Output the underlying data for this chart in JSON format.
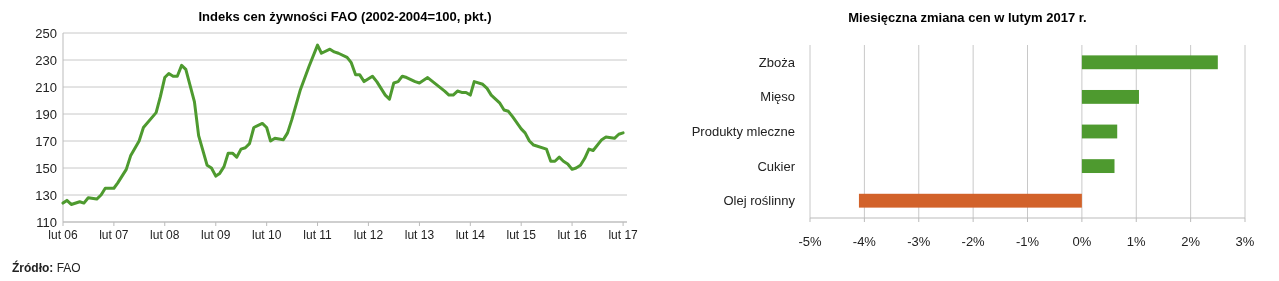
{
  "chart_data": [
    {
      "type": "line",
      "title": "Indeks cen żywności FAO (2002-2004=100, pkt.)",
      "x": [
        "2006-02",
        "2006-03",
        "2006-04",
        "2006-06",
        "2006-07",
        "2006-08",
        "2006-10",
        "2006-11",
        "2006-12",
        "2007-02",
        "2007-03",
        "2007-05",
        "2007-06",
        "2007-08",
        "2007-09",
        "2007-12",
        "2008-01",
        "2008-02",
        "2008-03",
        "2008-04",
        "2008-05",
        "2008-06",
        "2008-07",
        "2008-09",
        "2008-10",
        "2008-12",
        "2009-01",
        "2009-02",
        "2009-03",
        "2009-04",
        "2009-05",
        "2009-06",
        "2009-07",
        "2009-08",
        "2009-09",
        "2009-10",
        "2009-11",
        "2010-01",
        "2010-02",
        "2010-03",
        "2010-04",
        "2010-06",
        "2010-07",
        "2010-08",
        "2010-10",
        "2010-12",
        "2011-02",
        "2011-03",
        "2011-05",
        "2011-06",
        "2011-07",
        "2011-09",
        "2011-10",
        "2011-11",
        "2011-12",
        "2012-01",
        "2012-03",
        "2012-04",
        "2012-06",
        "2012-07",
        "2012-08",
        "2012-09",
        "2012-10",
        "2012-11",
        "2013-01",
        "2013-02",
        "2013-04",
        "2013-06",
        "2013-08",
        "2013-09",
        "2013-10",
        "2013-11",
        "2013-12",
        "2014-01",
        "2014-02",
        "2014-03",
        "2014-05",
        "2014-06",
        "2014-07",
        "2014-09",
        "2014-10",
        "2014-11",
        "2014-12",
        "2015-02",
        "2015-03",
        "2015-04",
        "2015-05",
        "2015-08",
        "2015-09",
        "2015-10",
        "2015-11",
        "2015-12",
        "2016-01",
        "2016-02",
        "2016-03",
        "2016-04",
        "2016-05",
        "2016-06",
        "2016-07",
        "2016-09",
        "2016-10",
        "2016-12",
        "2017-01",
        "2017-02"
      ],
      "series": [
        {
          "color": "#4e9a2f",
          "values": [
            124,
            126,
            123,
            125,
            124,
            128,
            127,
            130,
            135,
            135,
            139,
            149,
            159,
            170,
            180,
            191,
            203,
            217,
            220,
            218,
            218,
            226,
            223,
            199,
            174,
            152,
            150,
            144,
            146,
            151,
            161,
            161,
            158,
            164,
            165,
            168,
            180,
            183,
            180,
            170,
            172,
            171,
            176,
            186,
            208,
            225,
            241,
            235,
            238,
            236,
            235,
            232,
            228,
            219,
            219,
            214,
            218,
            214,
            204,
            201,
            213,
            214,
            218,
            217,
            214,
            213,
            217,
            212,
            207,
            204,
            204,
            207,
            206,
            206,
            204,
            214,
            212,
            209,
            204,
            198,
            193,
            192,
            188,
            179,
            176,
            170,
            167,
            164,
            155,
            155,
            158,
            155,
            153,
            149,
            150,
            152,
            157,
            164,
            163,
            171,
            173,
            172,
            175,
            176
          ]
        }
      ],
      "xlim": [
        "2006-02",
        "2017-03"
      ],
      "xticks": [
        {
          "value": "2006-02",
          "label": "lut 06"
        },
        {
          "value": "2007-02",
          "label": "lut 07"
        },
        {
          "value": "2008-02",
          "label": "lut 08"
        },
        {
          "value": "2009-02",
          "label": "lut 09"
        },
        {
          "value": "2010-02",
          "label": "lut 10"
        },
        {
          "value": "2011-02",
          "label": "lut 11"
        },
        {
          "value": "2012-02",
          "label": "lut 12"
        },
        {
          "value": "2013-02",
          "label": "lut 13"
        },
        {
          "value": "2014-02",
          "label": "lut 14"
        },
        {
          "value": "2015-02",
          "label": "lut 15"
        },
        {
          "value": "2016-02",
          "label": "lut 16"
        },
        {
          "value": "2017-02",
          "label": "lut 17"
        }
      ],
      "ylim": [
        110,
        250
      ],
      "yticks": [
        110,
        130,
        150,
        170,
        190,
        210,
        230,
        250
      ],
      "grid": "y",
      "marker": "none",
      "line_style": "solid",
      "annotations": [
        "Źródło: FAO"
      ]
    },
    {
      "type": "bar",
      "orientation": "horizontal",
      "title": "Miesięczna zmiana cen w lutym 2017 r.",
      "categories": [
        "Zboża",
        "Mięso",
        "Produkty mleczne",
        "Cukier",
        "Olej roślinny"
      ],
      "values": [
        2.5,
        1.05,
        0.65,
        0.6,
        -4.1
      ],
      "colors": [
        "#4e9a2f",
        "#4e9a2f",
        "#4e9a2f",
        "#4e9a2f",
        "#d2622a"
      ],
      "xlim": [
        -5,
        3
      ],
      "xticks": [
        {
          "value": -5,
          "label": "-5%"
        },
        {
          "value": -4,
          "label": "-4%"
        },
        {
          "value": -3,
          "label": "-3%"
        },
        {
          "value": -2,
          "label": "-2%"
        },
        {
          "value": -1,
          "label": "-1%"
        },
        {
          "value": 0,
          "label": "0%"
        },
        {
          "value": 1,
          "label": "1%"
        },
        {
          "value": 2,
          "label": "2%"
        },
        {
          "value": 3,
          "label": "3%"
        }
      ],
      "grid": "x"
    }
  ]
}
